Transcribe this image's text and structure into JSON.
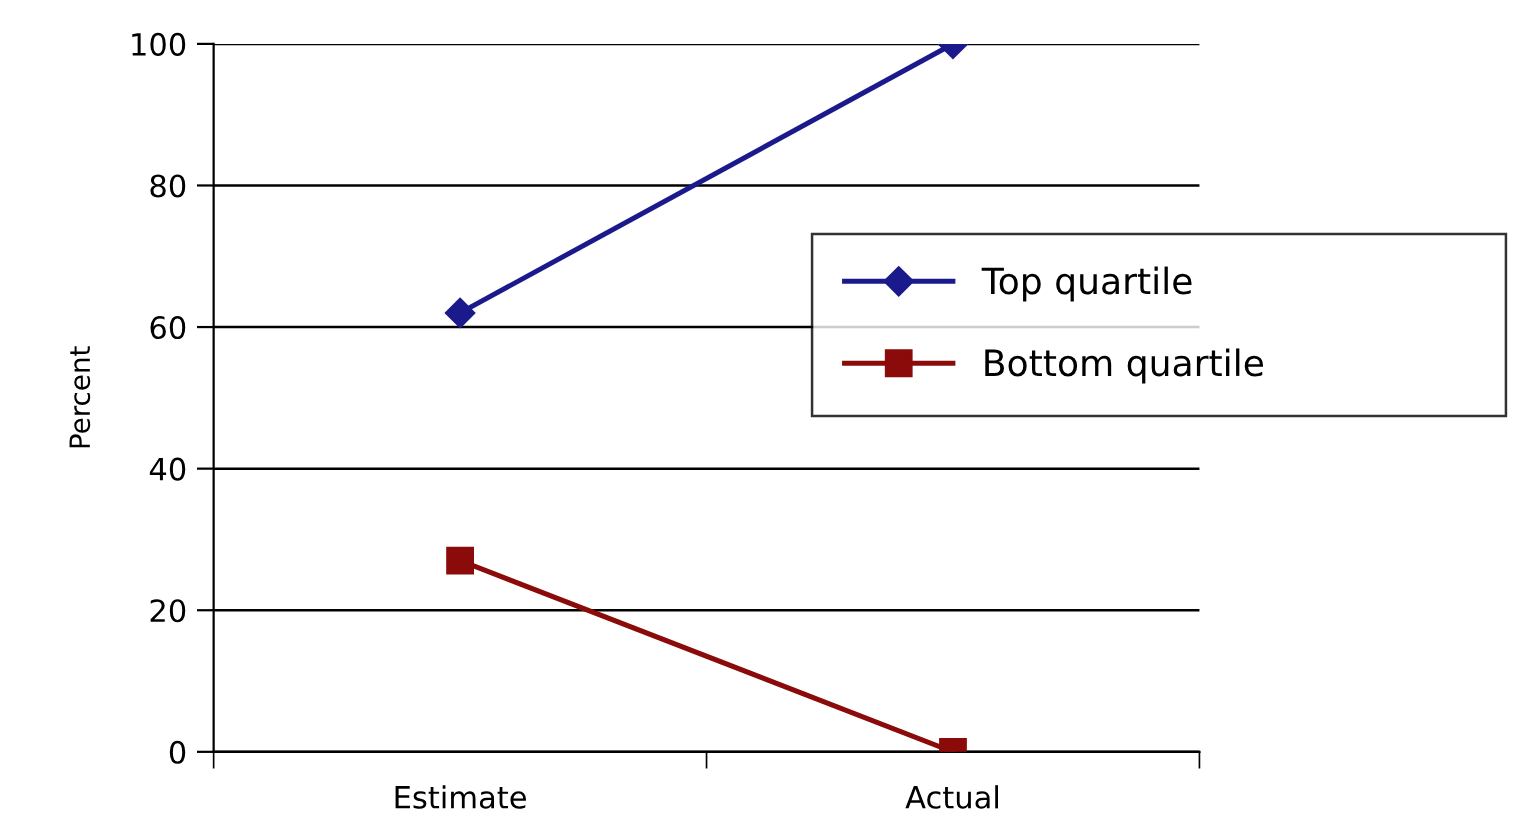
{
  "chart_data": {
    "type": "line",
    "ylabel": "Percent",
    "categories": [
      "Estimate",
      "Actual"
    ],
    "series": [
      {
        "name": "Top quartile",
        "color": "#1a1a8c",
        "values": [
          62,
          100
        ],
        "marker": "diamond"
      },
      {
        "name": "Bottom quartile",
        "color": "#8b0a0a",
        "values": [
          27,
          0
        ],
        "marker": "square"
      }
    ],
    "ylim": [
      0,
      100
    ],
    "yticks": [
      0,
      20,
      40,
      60,
      80,
      100
    ],
    "grid": "y",
    "legend": "right",
    "line_style": "solid"
  }
}
